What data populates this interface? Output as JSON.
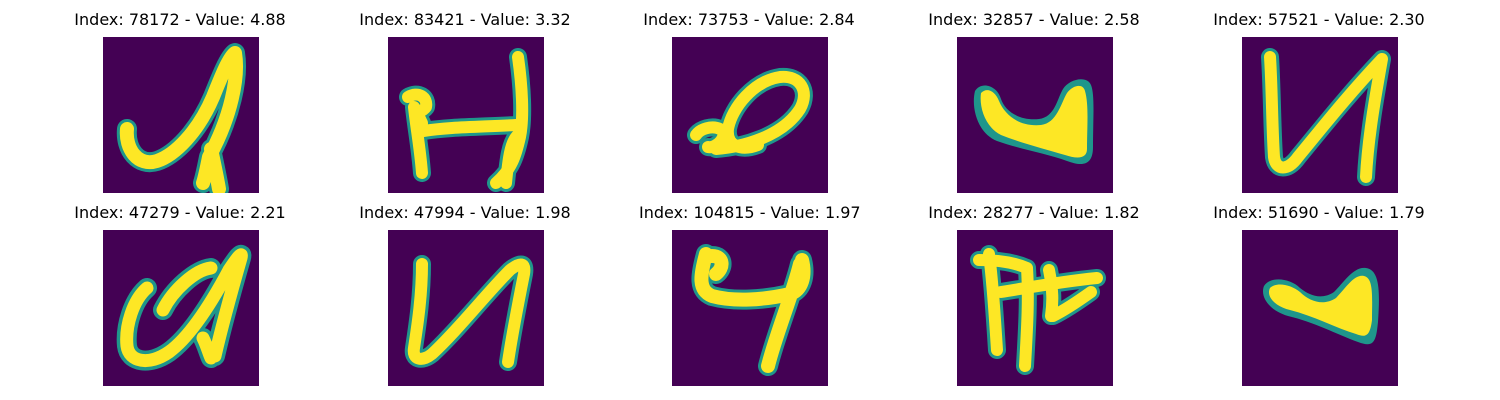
{
  "figure": {
    "background": "#ffffff",
    "colormap": "viridis",
    "colors": {
      "background_low": "#440154",
      "mid_teal": "#1f968b",
      "mid_green": "#5ec962",
      "high_yellow": "#fde725"
    },
    "panels": [
      {
        "title": "Index: 78172 - Value: 4.88",
        "glyph": "sketch-a-like"
      },
      {
        "title": "Index: 83421 - Value: 3.32",
        "glyph": "sketch-h-like"
      },
      {
        "title": "Index: 73753 - Value: 2.84",
        "glyph": "sketch-oval-loop"
      },
      {
        "title": "Index: 32857 - Value: 2.58",
        "glyph": "sketch-blob-u"
      },
      {
        "title": "Index: 57521 - Value: 2.30",
        "glyph": "sketch-u-like"
      },
      {
        "title": "Index: 47279 - Value: 2.21",
        "glyph": "sketch-curly-a"
      },
      {
        "title": "Index: 47994 - Value: 1.98",
        "glyph": "sketch-n-like"
      },
      {
        "title": "Index: 104815 - Value: 1.97",
        "glyph": "sketch-four-like"
      },
      {
        "title": "Index: 28277 - Value: 1.82",
        "glyph": "sketch-h-bar"
      },
      {
        "title": "Index: 51690 - Value: 1.79",
        "glyph": "sketch-small-blob"
      }
    ]
  }
}
